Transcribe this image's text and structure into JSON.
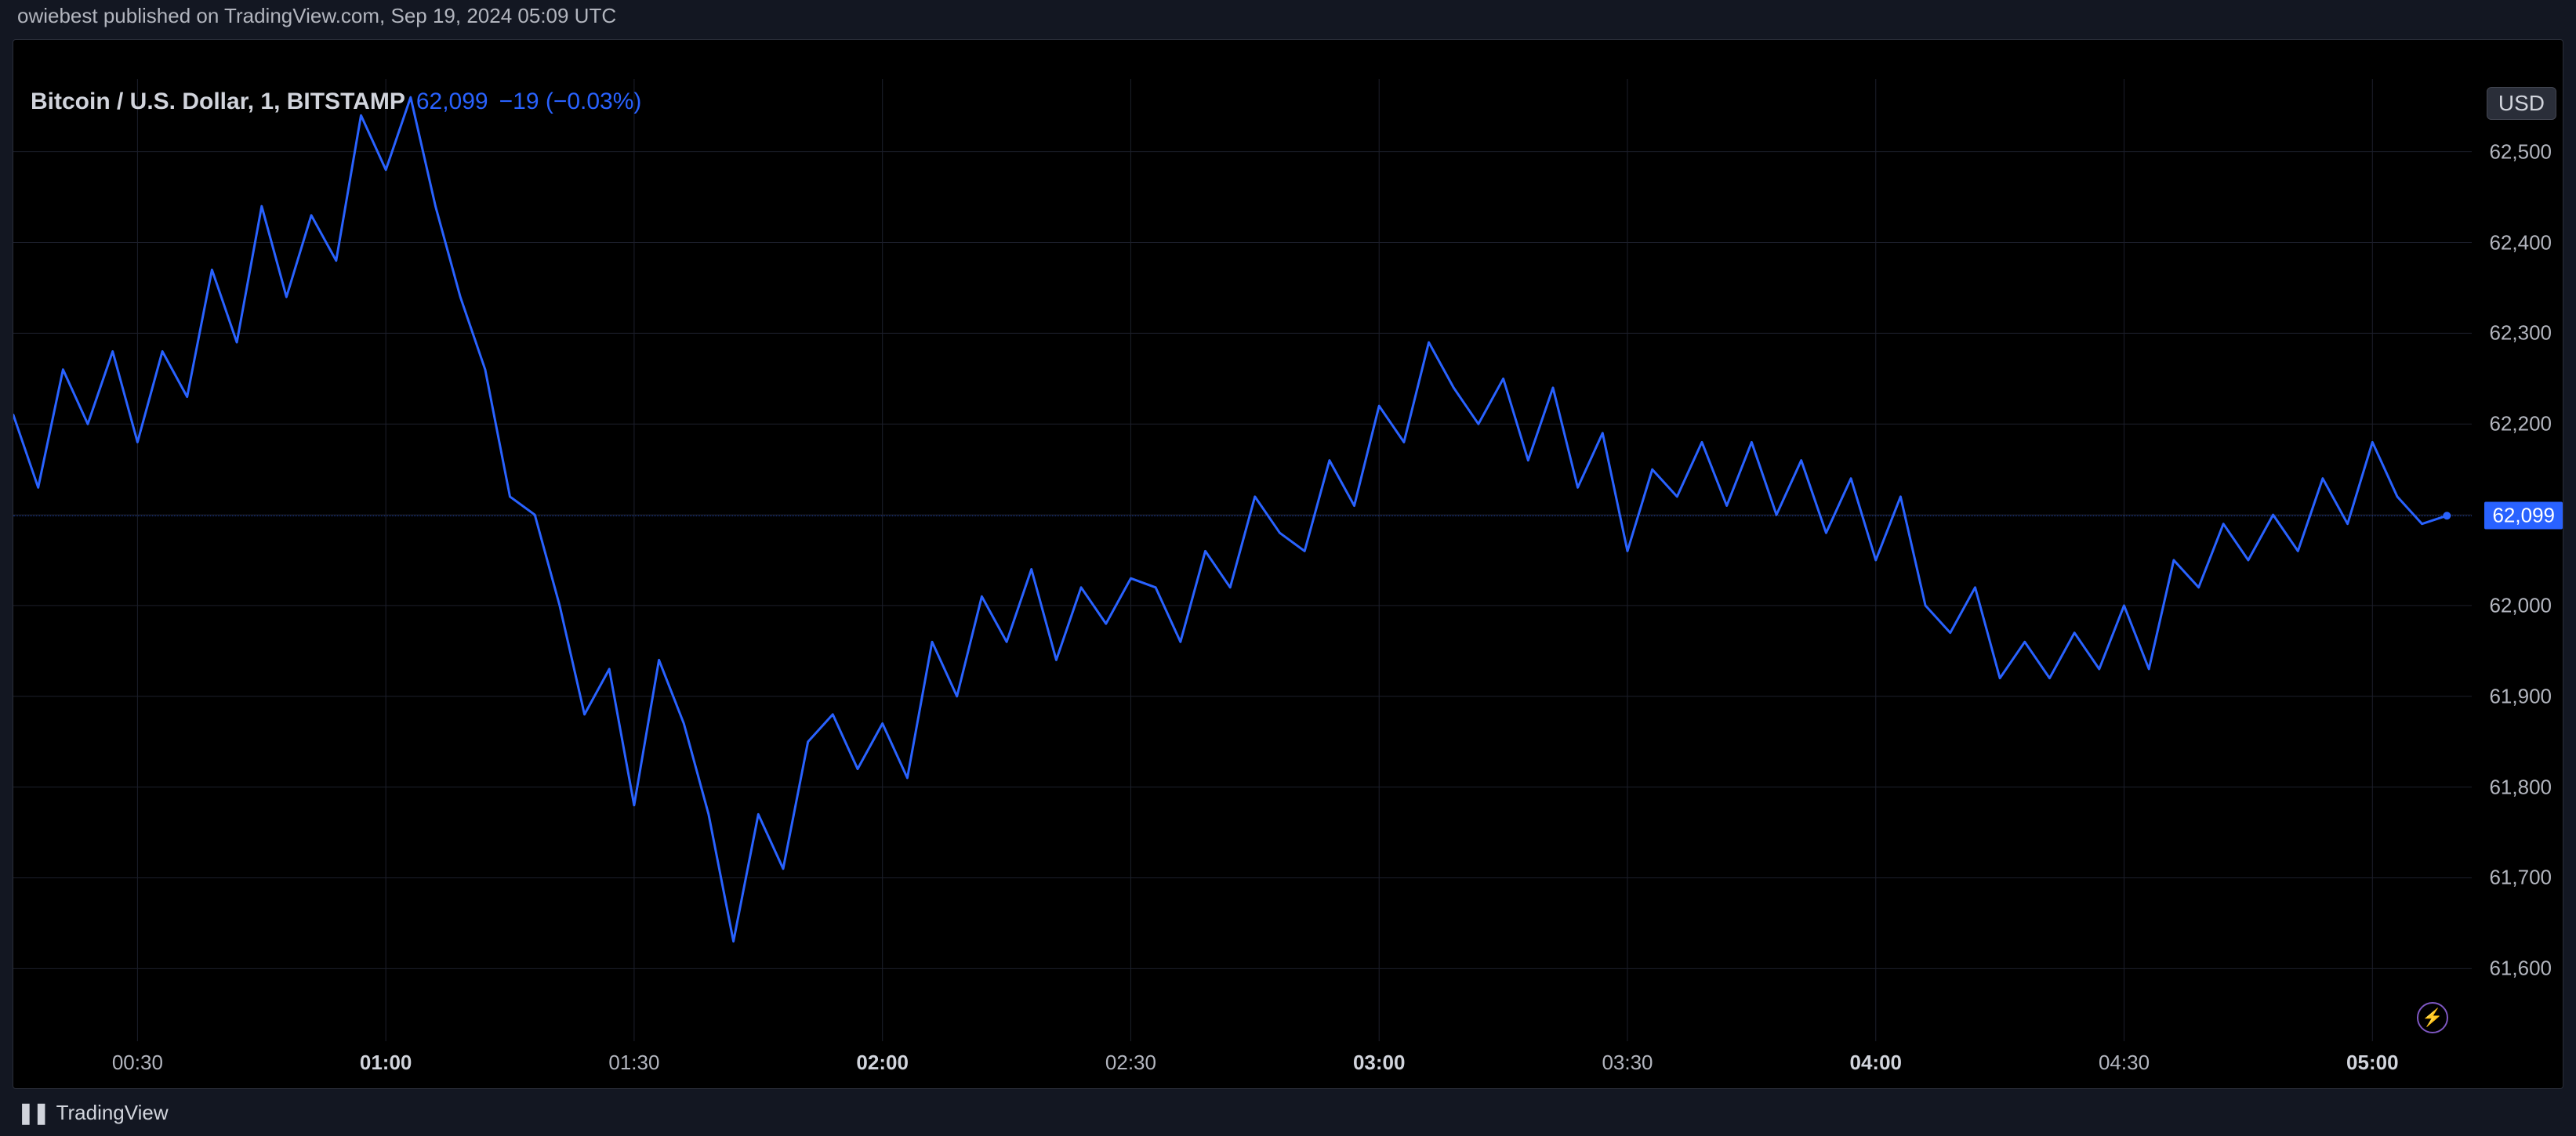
{
  "header": {
    "publish_text": "owiebest published on TradingView.com, Sep 19, 2024 05:09 UTC"
  },
  "legend": {
    "title": "Bitcoin / U.S. Dollar, 1, BITSTAMP",
    "price": "62,099",
    "change": "−19 (−0.03%)"
  },
  "currency_badge": "USD",
  "footer": {
    "brand": "TradingView",
    "logo_glyph": "❚❚"
  },
  "bolt_icon": "⚡",
  "chart": {
    "type": "line",
    "line_color": "#2962ff",
    "line_width": 3,
    "background": "#000000",
    "grid_color": "#1c1f2b",
    "current_price_line_color": "#2962ff",
    "y_axis": {
      "min": 61520,
      "max": 62580,
      "ticks": [
        61600,
        61700,
        61800,
        61900,
        62000,
        62100,
        62200,
        62300,
        62400,
        62500
      ],
      "tick_labels": [
        "61,600",
        "61,700",
        "61,800",
        "61,900",
        "62,000",
        "62,100",
        "62,200",
        "62,300",
        "62,400",
        "62,500"
      ],
      "current_value": 62099,
      "current_label": "62,099",
      "label_fontsize": 26,
      "label_color": "#b2b5be"
    },
    "x_axis": {
      "min": 15,
      "max": 312,
      "ticks": [
        {
          "t": 30,
          "label": "00:30",
          "bold": false
        },
        {
          "t": 60,
          "label": "01:00",
          "bold": true
        },
        {
          "t": 90,
          "label": "01:30",
          "bold": false
        },
        {
          "t": 120,
          "label": "02:00",
          "bold": true
        },
        {
          "t": 150,
          "label": "02:30",
          "bold": false
        },
        {
          "t": 180,
          "label": "03:00",
          "bold": true
        },
        {
          "t": 210,
          "label": "03:30",
          "bold": false
        },
        {
          "t": 240,
          "label": "04:00",
          "bold": true
        },
        {
          "t": 270,
          "label": "04:30",
          "bold": false
        },
        {
          "t": 300,
          "label": "05:00",
          "bold": true
        }
      ],
      "label_fontsize": 26,
      "label_color": "#b2b5be"
    },
    "series": {
      "t": [
        15,
        18,
        21,
        24,
        27,
        30,
        33,
        36,
        39,
        42,
        45,
        48,
        51,
        54,
        57,
        60,
        63,
        66,
        69,
        72,
        75,
        78,
        81,
        84,
        87,
        90,
        93,
        96,
        99,
        102,
        105,
        108,
        111,
        114,
        117,
        120,
        123,
        126,
        129,
        132,
        135,
        138,
        141,
        144,
        147,
        150,
        153,
        156,
        159,
        162,
        165,
        168,
        171,
        174,
        177,
        180,
        183,
        186,
        189,
        192,
        195,
        198,
        201,
        204,
        207,
        210,
        213,
        216,
        219,
        222,
        225,
        228,
        231,
        234,
        237,
        240,
        243,
        246,
        249,
        252,
        255,
        258,
        261,
        264,
        267,
        270,
        273,
        276,
        279,
        282,
        285,
        288,
        291,
        294,
        297,
        300,
        303,
        306,
        309
      ],
      "v": [
        62210,
        62130,
        62260,
        62200,
        62280,
        62180,
        62280,
        62230,
        62370,
        62290,
        62440,
        62340,
        62430,
        62380,
        62540,
        62480,
        62560,
        62440,
        62340,
        62260,
        62120,
        62100,
        62000,
        61880,
        61930,
        61780,
        61940,
        61870,
        61770,
        61630,
        61770,
        61710,
        61850,
        61880,
        61820,
        61870,
        61810,
        61960,
        61900,
        62010,
        61960,
        62040,
        61940,
        62020,
        61980,
        62030,
        62020,
        61960,
        62060,
        62020,
        62120,
        62080,
        62060,
        62160,
        62110,
        62220,
        62180,
        62290,
        62240,
        62200,
        62250,
        62160,
        62240,
        62130,
        62190,
        62060,
        62150,
        62120,
        62180,
        62110,
        62180,
        62100,
        62160,
        62080,
        62140,
        62050,
        62120,
        62000,
        61970,
        62020,
        61920,
        61960,
        61920,
        61970,
        61930,
        62000,
        61930,
        62050,
        62020,
        62090,
        62050,
        62100,
        62060,
        62140,
        62090,
        62180,
        62120,
        62090,
        62099
      ]
    }
  }
}
